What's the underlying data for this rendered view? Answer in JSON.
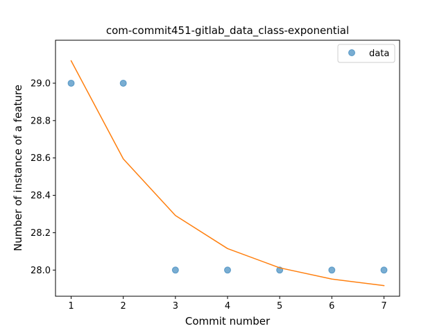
{
  "chart_data": {
    "type": "scatter",
    "title": "com-commit451-gitlab_data_class-exponential",
    "xlabel": "Commit number",
    "ylabel": "Number of instance of a feature",
    "xlim": [
      0.7,
      7.3
    ],
    "ylim": [
      27.86,
      29.23
    ],
    "xticks": [
      1,
      2,
      3,
      4,
      5,
      6,
      7
    ],
    "yticks": [
      28.0,
      28.2,
      28.4,
      28.6,
      28.8,
      29.0
    ],
    "ytick_labels": [
      "28.0",
      "28.2",
      "28.4",
      "28.6",
      "28.8",
      "29.0"
    ],
    "grid": false,
    "legend": {
      "placement": "top-right",
      "entries": [
        "data"
      ]
    },
    "series": [
      {
        "name": "data",
        "kind": "scatter",
        "color": "#1f77b4",
        "x": [
          1,
          2,
          3,
          4,
          5,
          6,
          7
        ],
        "y": [
          29.0,
          29.0,
          28.0,
          28.0,
          28.0,
          28.0,
          28.0
        ]
      },
      {
        "kind": "line",
        "color": "#ff7f0e",
        "x": [
          1,
          2,
          3,
          4,
          5,
          6,
          7
        ],
        "y": [
          29.12,
          28.595,
          28.292,
          28.115,
          28.012,
          27.952,
          27.917
        ]
      }
    ]
  }
}
